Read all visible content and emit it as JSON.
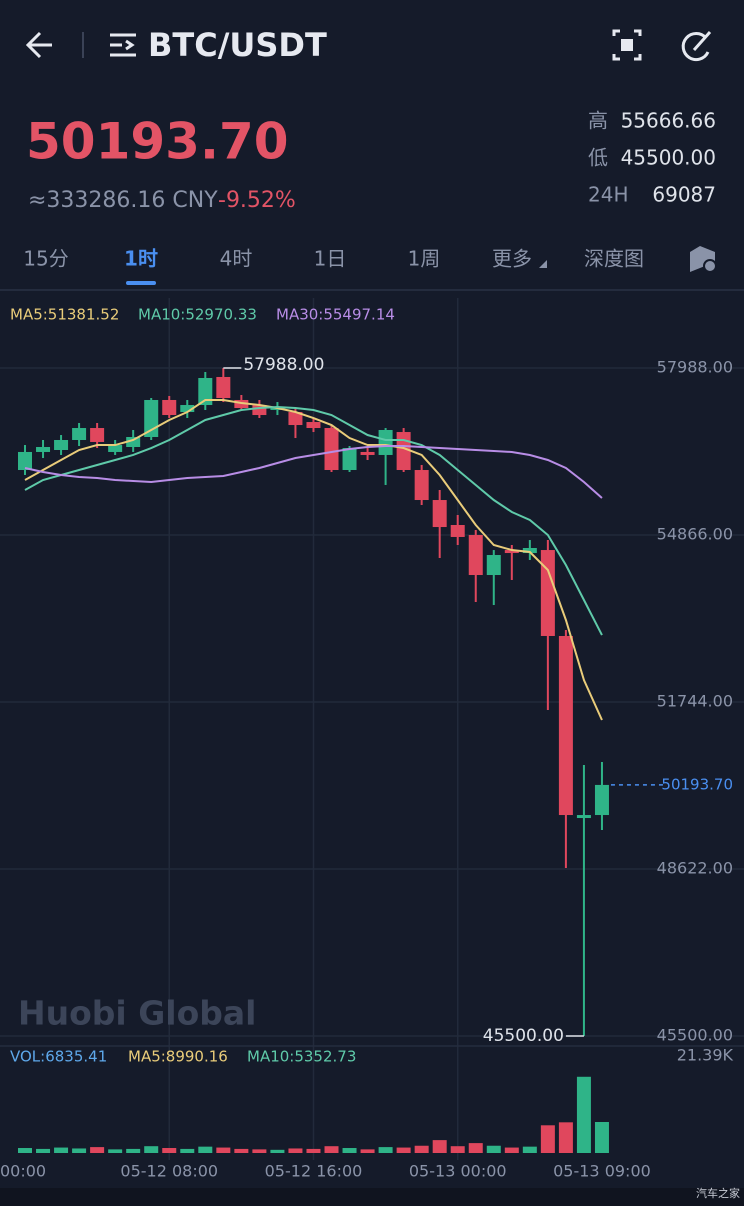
{
  "header": {
    "title": "BTC/USDT"
  },
  "ticker": {
    "price": "50193.70",
    "cny": "≈333286.16 CNY",
    "change": "-9.52%",
    "stats": [
      {
        "label": "高",
        "value": "55666.66"
      },
      {
        "label": "低",
        "value": "45500.00"
      },
      {
        "label": "24H",
        "value": "69087"
      }
    ]
  },
  "tabs": {
    "items": [
      "15分",
      "1时",
      "4时",
      "1日",
      "1周",
      "更多",
      "深度图"
    ],
    "active": 1
  },
  "watermark": "Huobi Global",
  "corner_mark": "汽车之家",
  "chart_data": {
    "type": "candlestick",
    "categories": [
      "00:00",
      null,
      null,
      null,
      null,
      null,
      null,
      null,
      "05-12 08:00",
      null,
      null,
      null,
      null,
      null,
      null,
      null,
      "05-12 16:00",
      null,
      null,
      null,
      null,
      null,
      null,
      null,
      "05-13 00:00",
      null,
      null,
      null,
      null,
      null,
      null,
      null,
      "05-13 09:00"
    ],
    "open": [
      56081,
      56418,
      56455,
      56642,
      56866,
      56418,
      56511,
      56698,
      57390,
      57165,
      57296,
      57820,
      57390,
      57296,
      57203,
      57165,
      56978,
      56866,
      56081,
      56418,
      56362,
      56791,
      56081,
      55520,
      55053,
      54866,
      54118,
      54585,
      54529,
      54585,
      52978,
      49575,
      49631
    ],
    "high": [
      56548,
      56642,
      56735,
      56960,
      56960,
      56642,
      56829,
      57427,
      57465,
      57390,
      57913,
      57988,
      57483,
      57390,
      57352,
      57240,
      57053,
      56922,
      56530,
      56492,
      56866,
      56866,
      56175,
      55707,
      55240,
      54959,
      54585,
      54679,
      54772,
      54772,
      53090,
      50566,
      50622
    ],
    "low": [
      55988,
      56305,
      56362,
      56530,
      56492,
      56362,
      56418,
      56642,
      57053,
      57053,
      57203,
      57352,
      57203,
      57053,
      57109,
      56679,
      56791,
      56044,
      56044,
      56268,
      55801,
      56044,
      55427,
      54436,
      54679,
      53613,
      53557,
      54025,
      54399,
      51594,
      48641,
      45500,
      49351
    ],
    "close": [
      56418,
      56511,
      56642,
      56866,
      56605,
      56548,
      56698,
      57390,
      57109,
      57296,
      57801,
      57427,
      57240,
      57109,
      57259,
      56922,
      56866,
      56081,
      56492,
      56362,
      56829,
      56081,
      55520,
      55015,
      54829,
      54118,
      54492,
      54529,
      54623,
      52978,
      49631,
      49631,
      50193.7
    ],
    "up_color": "#2fb488",
    "down_color": "#e0475d",
    "ylim": [
      45500,
      57988
    ],
    "yticks": [
      {
        "value": 57988,
        "label": "57988.00"
      },
      {
        "value": 54866,
        "label": "54866.00"
      },
      {
        "value": 51744,
        "label": "51744.00"
      },
      {
        "value": 48622,
        "label": "48622.00"
      },
      {
        "value": 45500,
        "label": "45500.00"
      }
    ],
    "high_label": "57988.00",
    "low_label": "45500.00",
    "last_label": "50193.70",
    "series": [
      {
        "name": "MA5:51381.52",
        "color": "#e9cc7a",
        "values": [
          55894,
          56081,
          56268,
          56455,
          56548,
          56548,
          56642,
          56829,
          57016,
          57165,
          57390,
          57390,
          57334,
          57296,
          57240,
          57165,
          57053,
          56922,
          56679,
          56548,
          56548,
          56492,
          56362,
          55988,
          55520,
          55053,
          54679,
          54585,
          54548,
          54212,
          53277,
          52155,
          51407
        ]
      },
      {
        "name": "MA10:52970.33",
        "color": "#5fcaa9",
        "values": [
          55707,
          55894,
          55988,
          56081,
          56175,
          56268,
          56362,
          56492,
          56642,
          56829,
          57016,
          57109,
          57203,
          57240,
          57259,
          57240,
          57203,
          57109,
          56922,
          56735,
          56642,
          56642,
          56548,
          56362,
          56081,
          55801,
          55520,
          55296,
          55146,
          54866,
          54305,
          53651,
          52996
        ]
      },
      {
        "name": "MA30:55497.14",
        "color": "#b88de6",
        "values": [
          56119,
          56044,
          55988,
          55950,
          55931,
          55894,
          55875,
          55857,
          55894,
          55931,
          55950,
          55969,
          56044,
          56119,
          56212,
          56305,
          56362,
          56418,
          56474,
          56511,
          56530,
          56530,
          56511,
          56492,
          56474,
          56455,
          56436,
          56418,
          56362,
          56268,
          56119,
          55857,
          55558
        ]
      }
    ],
    "volume": {
      "values": [
        1100,
        900,
        1200,
        1000,
        1300,
        800,
        900,
        1500,
        1100,
        900,
        1400,
        1200,
        900,
        800,
        700,
        1000,
        900,
        1500,
        1100,
        800,
        1300,
        1200,
        1600,
        2840,
        1500,
        2180,
        1600,
        1200,
        1400,
        6110,
        6765,
        16807,
        6835.41
      ],
      "ylim": [
        0,
        21390
      ],
      "yticks": [
        {
          "value": 21390,
          "label": "21.39K"
        }
      ],
      "legend": [
        {
          "text": "VOL:6835.41",
          "color": "#5ea8ea"
        },
        {
          "text": "MA5:8990.16",
          "color": "#e9cc7a"
        },
        {
          "text": "MA10:5352.73",
          "color": "#5fcaa9"
        }
      ]
    }
  }
}
